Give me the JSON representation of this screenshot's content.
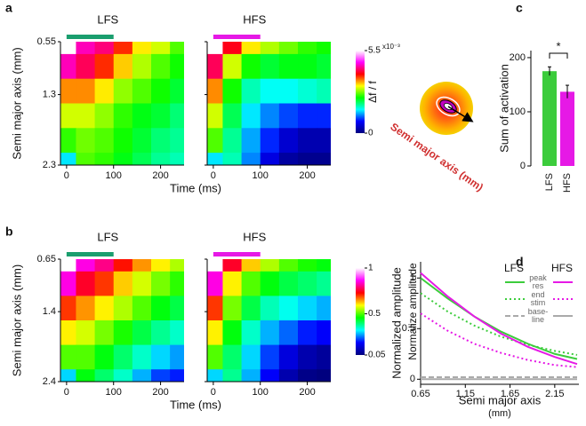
{
  "panel_labels": [
    "a",
    "b",
    "c",
    "d"
  ],
  "diagram": {
    "label": "Semi major axis (mm)"
  },
  "chart_data": [
    {
      "type": "heatmap",
      "title": "LFS",
      "xlabel": "Time (ms)",
      "ylabel": "Semi major axis (mm)",
      "x": [
        0,
        40,
        80,
        120,
        160,
        200,
        240
      ],
      "y": [
        0.55,
        0.9,
        1.25,
        1.6,
        1.95,
        2.3
      ],
      "z": [
        [
          5.5,
          4.5,
          4.3,
          3.8,
          3.2,
          3.0,
          2.6
        ],
        [
          4.5,
          4.2,
          3.8,
          3.3,
          2.9,
          2.6,
          2.4
        ],
        [
          3.5,
          3.5,
          3.2,
          2.8,
          2.6,
          2.4,
          2.2
        ],
        [
          3.0,
          3.0,
          2.8,
          2.5,
          2.3,
          2.2,
          2.0
        ],
        [
          2.5,
          2.7,
          2.6,
          2.4,
          2.2,
          2.0,
          1.9
        ],
        [
          1.5,
          2.6,
          2.5,
          2.3,
          2.1,
          1.9,
          1.8
        ]
      ],
      "xlim": [
        -13,
        250
      ],
      "xticks": [
        0,
        100,
        200
      ],
      "ylim": [
        0.55,
        2.3
      ],
      "yticks": [
        0.55,
        1.3,
        2.3
      ],
      "stimulus": [
        0,
        100
      ],
      "stimulus_color": "#1a9e6e",
      "zlim": [
        0,
        5.5
      ],
      "colormap": [
        "#00007f",
        "#0000ff",
        "#00ffff",
        "#00ff00",
        "#ffff00",
        "#ff0000",
        "#ff00ff",
        "#ffffff"
      ]
    },
    {
      "type": "heatmap",
      "title": "HFS",
      "x": [
        0,
        40,
        80,
        120,
        160,
        200,
        240
      ],
      "y": [
        0.55,
        0.9,
        1.25,
        1.6,
        1.95,
        2.3
      ],
      "z": [
        [
          5.5,
          4.0,
          3.2,
          2.9,
          2.7,
          2.5,
          2.4
        ],
        [
          4.2,
          3.0,
          2.4,
          2.2,
          2.3,
          2.3,
          2.2
        ],
        [
          3.5,
          2.4,
          1.8,
          1.6,
          1.6,
          1.7,
          1.8
        ],
        [
          3.0,
          2.1,
          1.5,
          1.2,
          1.0,
          0.9,
          0.9
        ],
        [
          2.6,
          1.9,
          1.3,
          0.9,
          0.5,
          0.3,
          0.3
        ],
        [
          1.5,
          1.8,
          1.2,
          0.6,
          0.2,
          0.1,
          0.1
        ]
      ],
      "xlim": [
        -13,
        250
      ],
      "xticks": [
        0,
        100,
        200
      ],
      "ylim": [
        0.55,
        2.3
      ],
      "yticks": [
        0.55,
        1.3,
        2.3
      ],
      "stimulus": [
        0,
        100
      ],
      "stimulus_color": "#e619e6",
      "zlim": [
        0,
        5.5
      ],
      "zticks": [
        0,
        5.5
      ],
      "zlabel": "Δf / f",
      "zunit": "x10⁻³",
      "colormap": [
        "#00007f",
        "#0000ff",
        "#00ffff",
        "#00ff00",
        "#ffff00",
        "#ff0000",
        "#ff00ff",
        "#ffffff"
      ]
    },
    {
      "type": "heatmap",
      "title": "LFS",
      "xlabel": "Time (ms)",
      "ylabel": "Semi major axis (mm)",
      "x": [
        0,
        40,
        80,
        120,
        160,
        200,
        240
      ],
      "y": [
        0.65,
        1.0,
        1.35,
        1.7,
        2.05,
        2.4
      ],
      "z": [
        [
          1.0,
          0.85,
          0.8,
          0.72,
          0.65,
          0.6,
          0.55
        ],
        [
          0.85,
          0.75,
          0.7,
          0.62,
          0.57,
          0.52,
          0.48
        ],
        [
          0.7,
          0.65,
          0.6,
          0.55,
          0.5,
          0.45,
          0.42
        ],
        [
          0.6,
          0.57,
          0.52,
          0.47,
          0.42,
          0.38,
          0.35
        ],
        [
          0.5,
          0.5,
          0.45,
          0.4,
          0.35,
          0.3,
          0.27
        ],
        [
          0.3,
          0.45,
          0.4,
          0.35,
          0.28,
          0.22,
          0.2
        ]
      ],
      "xlim": [
        -13,
        250
      ],
      "xticks": [
        0,
        100,
        200
      ],
      "ylim": [
        0.65,
        2.4
      ],
      "yticks": [
        0.65,
        1.4,
        2.4
      ],
      "stimulus": [
        0,
        100
      ],
      "stimulus_color": "#1a9e6e",
      "zlim": [
        0.05,
        1
      ],
      "colormap": [
        "#00007f",
        "#0000ff",
        "#00ffff",
        "#00ff00",
        "#ffff00",
        "#ff0000",
        "#ff00ff",
        "#ffffff"
      ]
    },
    {
      "type": "heatmap",
      "title": "HFS",
      "x": [
        0,
        40,
        80,
        120,
        160,
        200,
        240
      ],
      "y": [
        0.65,
        1.0,
        1.35,
        1.7,
        2.05,
        2.4
      ],
      "z": [
        [
          1.0,
          0.75,
          0.62,
          0.55,
          0.5,
          0.47,
          0.45
        ],
        [
          0.85,
          0.6,
          0.5,
          0.45,
          0.42,
          0.4,
          0.38
        ],
        [
          0.7,
          0.52,
          0.42,
          0.36,
          0.33,
          0.3,
          0.28
        ],
        [
          0.6,
          0.45,
          0.35,
          0.28,
          0.24,
          0.2,
          0.18
        ],
        [
          0.5,
          0.4,
          0.3,
          0.22,
          0.15,
          0.1,
          0.08
        ],
        [
          0.3,
          0.38,
          0.28,
          0.18,
          0.1,
          0.06,
          0.05
        ]
      ],
      "xlim": [
        -13,
        250
      ],
      "xticks": [
        0,
        100,
        200
      ],
      "ylim": [
        0.65,
        2.4
      ],
      "yticks": [
        0.65,
        1.4,
        2.4
      ],
      "stimulus": [
        0,
        100
      ],
      "stimulus_color": "#e619e6",
      "zlim": [
        0.05,
        1
      ],
      "zticks": [
        0.05,
        0.5,
        1
      ],
      "zlabel": "Normalize amplitude",
      "colormap": [
        "#00007f",
        "#0000ff",
        "#00ffff",
        "#00ff00",
        "#ffff00",
        "#ff0000",
        "#ff00ff",
        "#ffffff"
      ]
    },
    {
      "type": "bar",
      "ylabel": "Sum of activation",
      "categories": [
        "LFS",
        "HFS"
      ],
      "values": [
        175,
        137
      ],
      "errors": [
        8,
        12
      ],
      "colors": [
        "#3ccc3c",
        "#e619e6"
      ],
      "ylim": [
        0,
        213
      ],
      "yticks": [
        0,
        100,
        200
      ],
      "annotation": "*"
    },
    {
      "type": "line",
      "xlabel": "Semi major axis",
      "xunit": "(mm)",
      "ylabel": "Normalized amplitude",
      "x": [
        0.65,
        0.95,
        1.25,
        1.55,
        1.85,
        2.15,
        2.4
      ],
      "xlim": [
        0.65,
        2.42
      ],
      "xticks": [
        0.65,
        1.15,
        1.65,
        2.15
      ],
      "ylim": [
        -0.05,
        1.16
      ],
      "yticks": [
        0,
        0.5,
        1
      ],
      "legend_columns": [
        "LFS",
        "HFS"
      ],
      "series": [
        {
          "name": "peak res",
          "color": "#3ccc3c",
          "dash": "solid",
          "values": [
            1.0,
            0.8,
            0.62,
            0.47,
            0.35,
            0.25,
            0.2
          ]
        },
        {
          "name": "end stim",
          "color": "#3ccc3c",
          "dash": "dotted",
          "values": [
            0.85,
            0.67,
            0.53,
            0.42,
            0.34,
            0.28,
            0.24
          ]
        },
        {
          "name": "base-line",
          "color": "#aaaaaa",
          "dash": "dashed",
          "values": [
            0.02,
            0.02,
            0.02,
            0.02,
            0.02,
            0.02,
            0.02
          ]
        },
        {
          "color": "#e619e6",
          "dash": "solid",
          "values": [
            1.05,
            0.82,
            0.62,
            0.45,
            0.32,
            0.22,
            0.15
          ]
        },
        {
          "color": "#e619e6",
          "dash": "dotted",
          "values": [
            0.65,
            0.48,
            0.35,
            0.26,
            0.19,
            0.14,
            0.12
          ]
        },
        {
          "color": "#aaaaaa",
          "dash": "solid",
          "values": [
            0.0,
            0.0,
            0.0,
            0.0,
            0.0,
            0.0,
            0.0
          ]
        }
      ]
    }
  ]
}
